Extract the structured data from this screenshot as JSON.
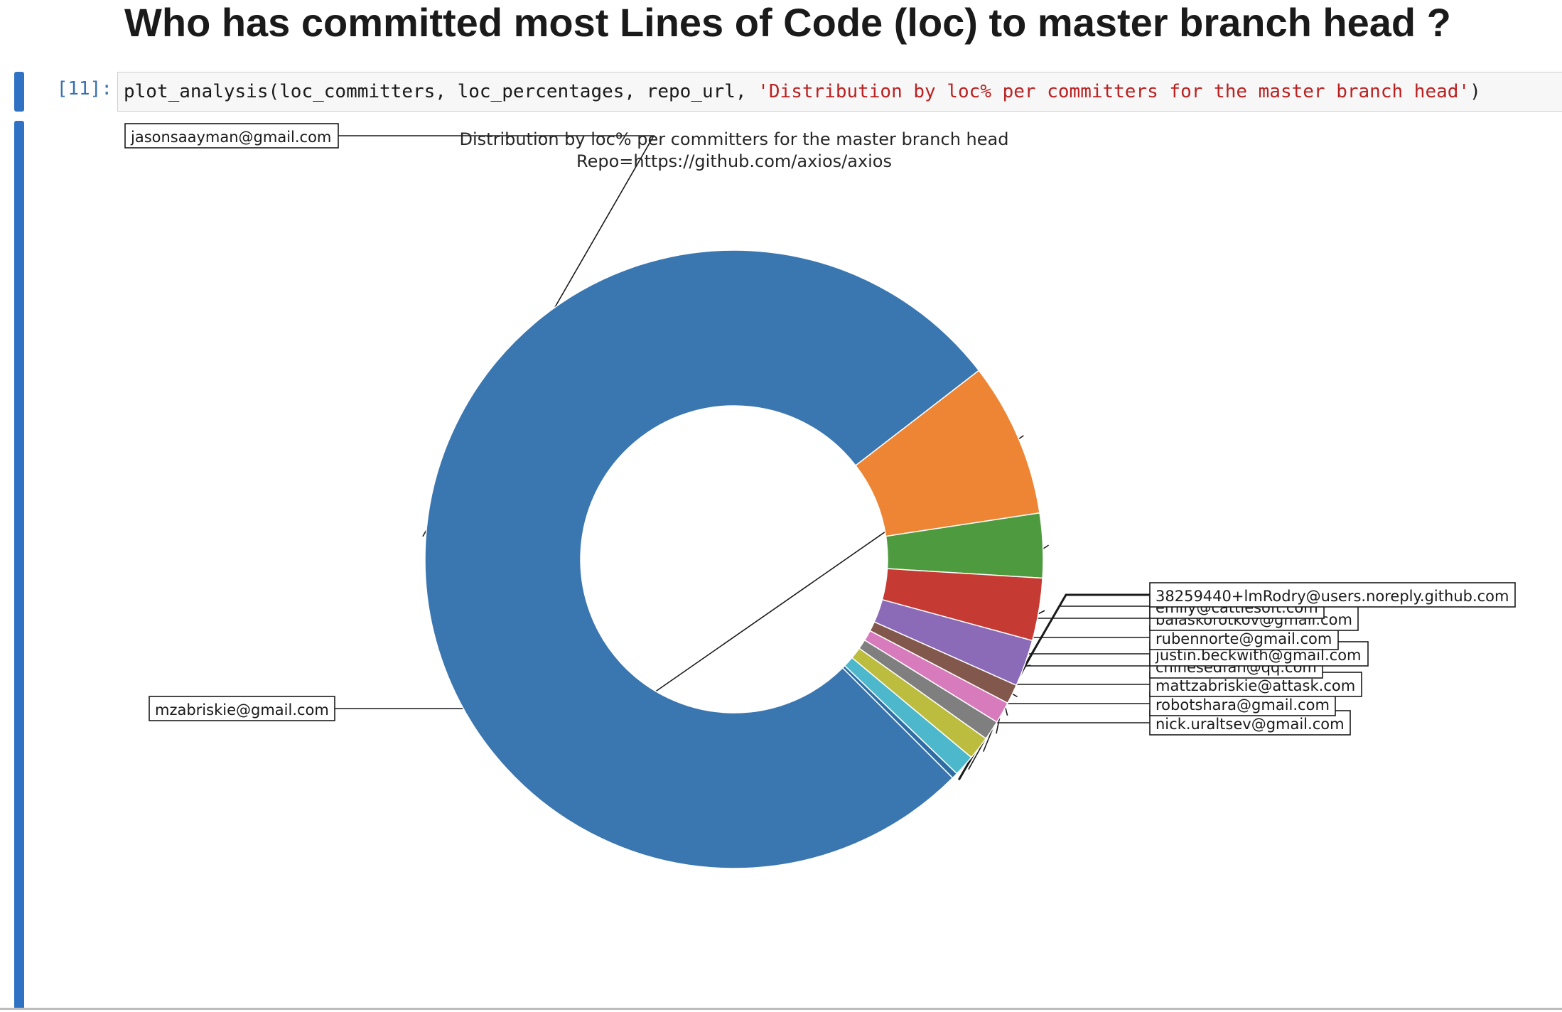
{
  "heading": "Who has committed most Lines of Code (loc) to master branch head ?",
  "cell": {
    "prompt": "[11]:",
    "code_prefix": "plot_analysis(loc_committers, loc_percentages, repo_url, ",
    "code_string": "'Distribution by loc% per committers for the master branch head'",
    "code_suffix": ")"
  },
  "colors": {
    "accent_bar": "#2f72c3",
    "string_token": "#ba2121",
    "prompt_text": "#3870b0"
  },
  "chart_data": {
    "type": "pie",
    "style": "donut",
    "title_line1": "Distribution by loc% per committers for the master branch head",
    "title_line2": "Repo=https://github.com/axios/axios",
    "slices": [
      {
        "label": "jasonsaayman@gmail.com",
        "value": 75.5,
        "color": "#3a76b0"
      },
      {
        "label": "mzabriskie@gmail.com",
        "value": 7.9,
        "color": "#ee8535"
      },
      {
        "label": "nick.uraltsev@gmail.com",
        "value": 3.3,
        "color": "#4e9a3f"
      },
      {
        "label": "robotshara@gmail.com",
        "value": 3.2,
        "color": "#c53a32"
      },
      {
        "label": "mattzabriskie@attask.com",
        "value": 2.4,
        "color": "#8b6bb8"
      },
      {
        "label": "chinesedfan@qq.com",
        "value": 1.0,
        "color": "#83584c"
      },
      {
        "label": "justin.beckwith@gmail.com",
        "value": 1.1,
        "color": "#d77bbd"
      },
      {
        "label": "rubennorte@gmail.com",
        "value": 1.0,
        "color": "#7f7f7f"
      },
      {
        "label": "balaskorotkov@gmail.com",
        "value": 1.2,
        "color": "#bcbd3f"
      },
      {
        "label": "emily@cattlesoft.com",
        "value": 1.1,
        "color": "#4db8cb"
      },
      {
        "label": "38259440+lmRodry@users.noreply.github.com",
        "value": 0.3,
        "color": "#2e6da4"
      }
    ]
  }
}
